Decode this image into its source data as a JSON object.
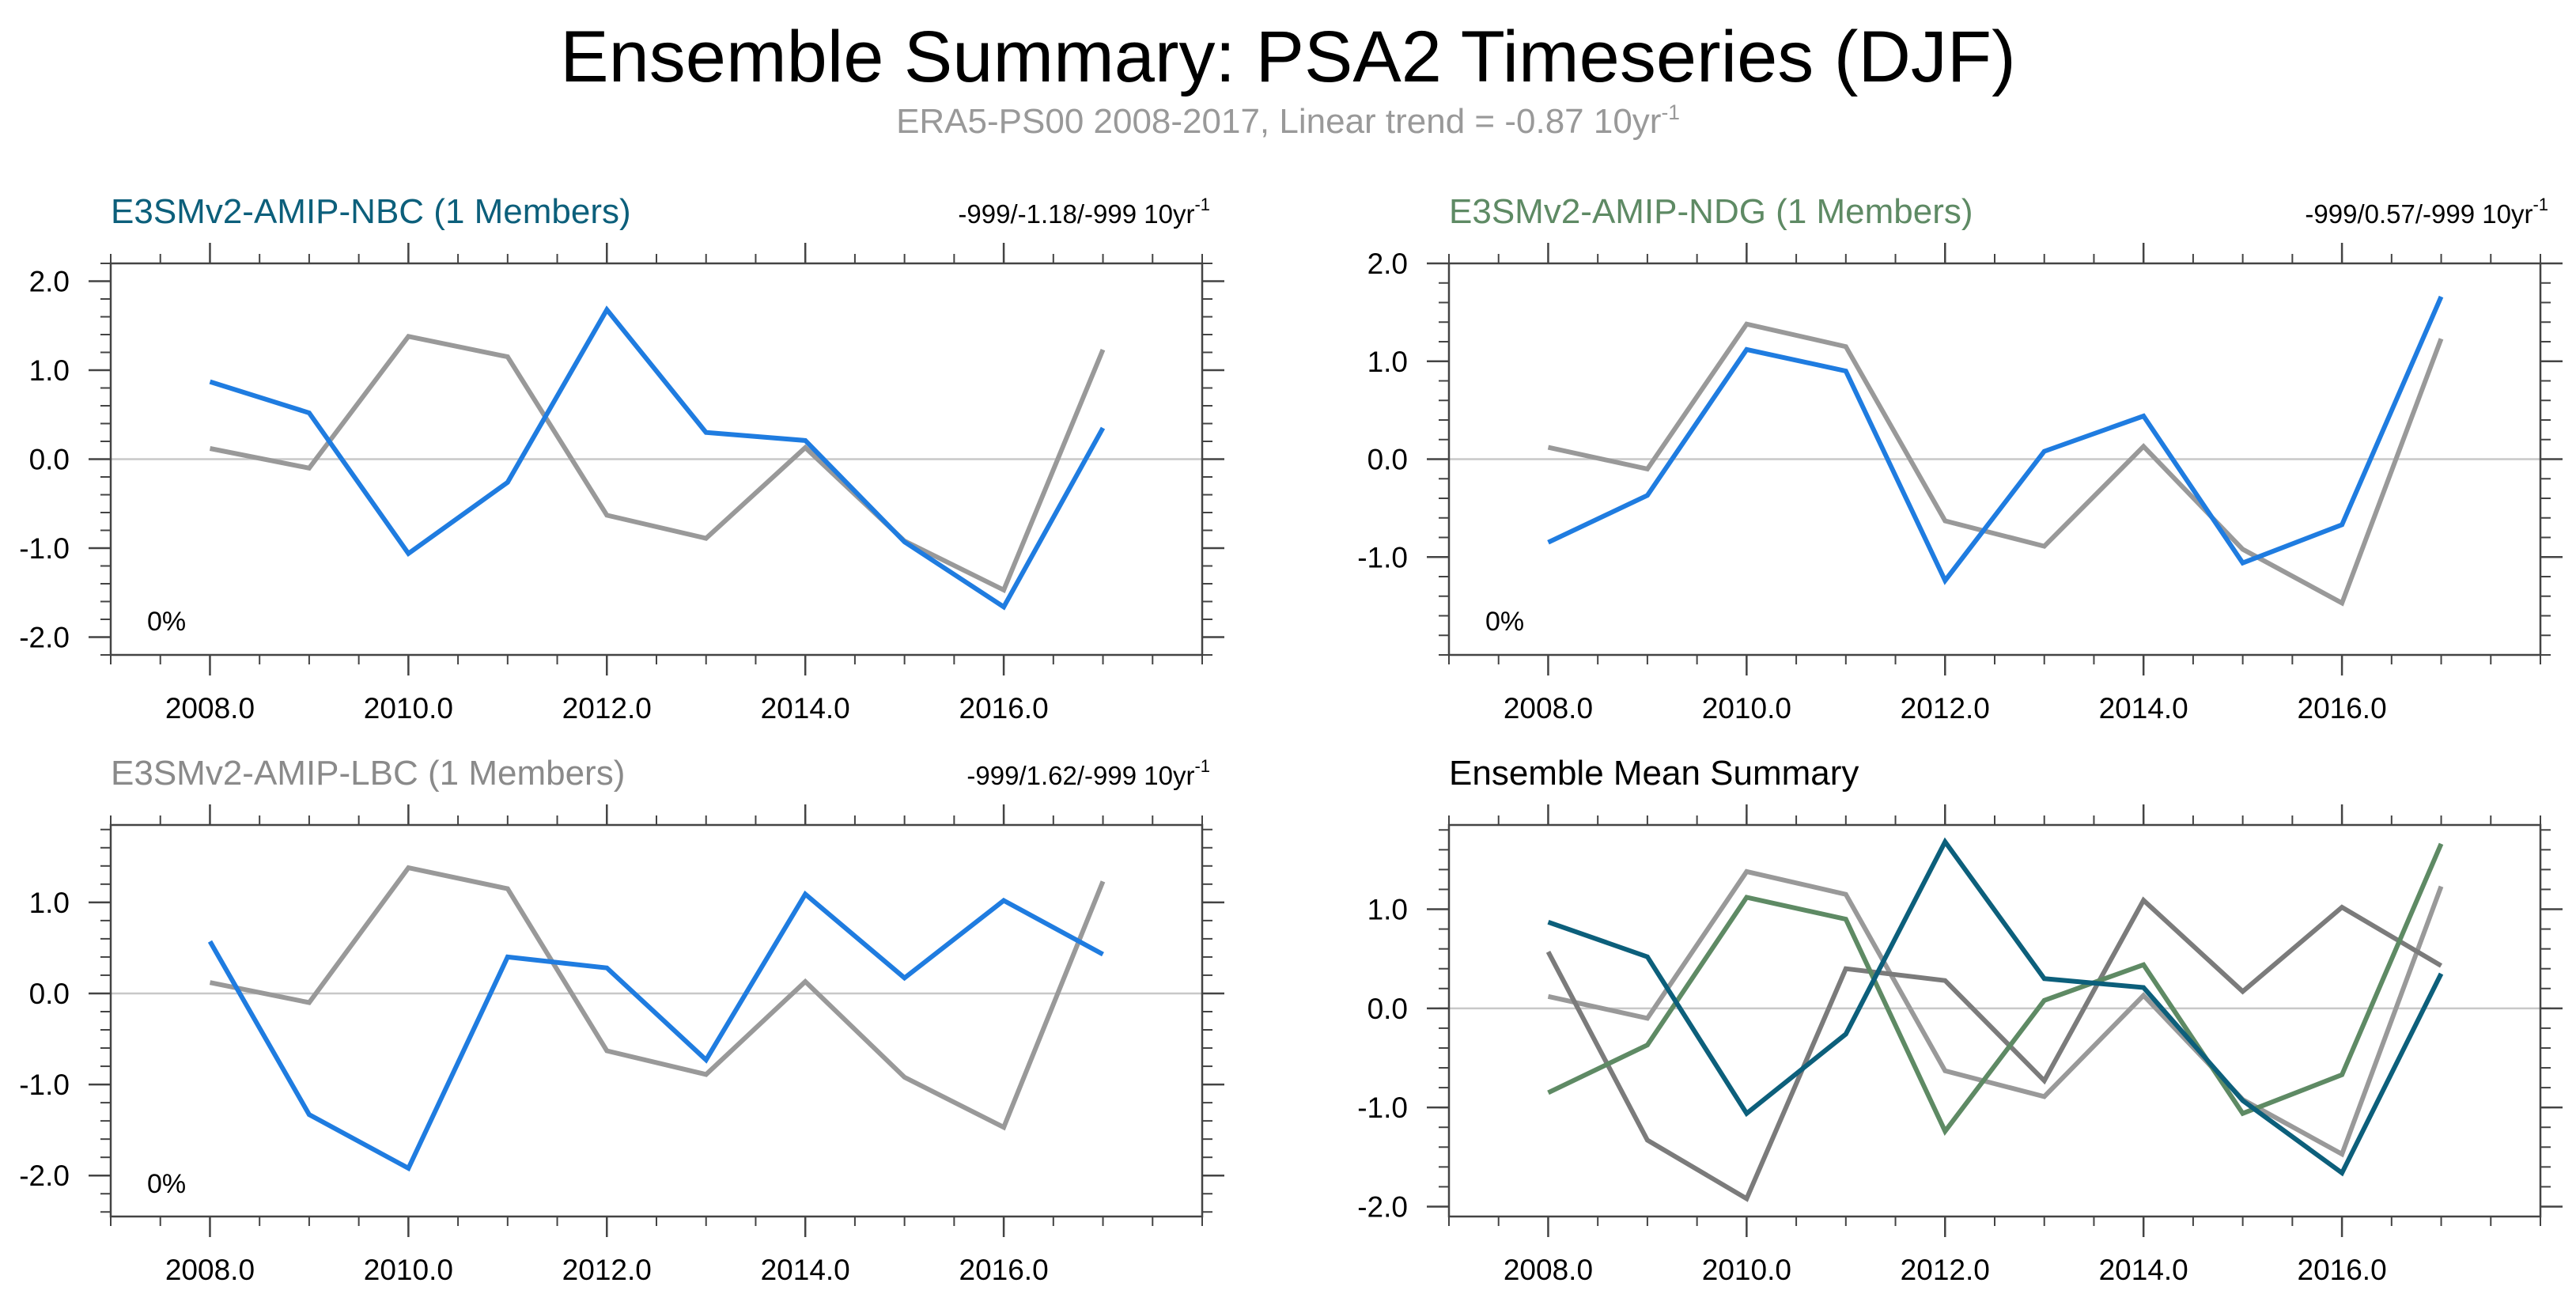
{
  "figure": {
    "title": "Ensemble Summary: PSA2 Timeseries (DJF)",
    "subtitle_main": "ERA5-PS00 2008-2017, Linear trend = -0.87 10yr",
    "subtitle_sup": "-1"
  },
  "colors": {
    "obs": "#999999",
    "nbc": "#1f7ce0",
    "ndg": "#1f7ce0",
    "lbc": "#1f7ce0",
    "mean_nbc": "#0c5f7b",
    "mean_ndg": "#5e8a64",
    "mean_lbc": "#7b7b7b",
    "title_nbc": "#0c5f7b",
    "title_ndg": "#5e8a64",
    "title_lbc": "#8a8a8a"
  },
  "chart_data": [
    {
      "id": "nbc",
      "type": "line",
      "title": "E3SMv2-AMIP-NBC (1 Members)",
      "trend_main": "-999/-1.18/-999 10yr",
      "trend_sup": "-1",
      "pct": "0%",
      "xlim": [
        2007.0,
        2018.0
      ],
      "ylim": [
        -2.2,
        2.2
      ],
      "xticks": [
        2008,
        2010,
        2012,
        2014,
        2016
      ],
      "xtick_labels": [
        "2008.0",
        "2010.0",
        "2012.0",
        "2014.0",
        "2016.0"
      ],
      "yticks": [
        2,
        1,
        0,
        -1,
        -2
      ],
      "ytick_labels": [
        "2.0",
        "1.0",
        "0.0",
        "-1.0",
        "-2.0"
      ],
      "x": [
        2008,
        2009,
        2010,
        2011,
        2012,
        2013,
        2014,
        2015,
        2016,
        2017
      ],
      "series": [
        {
          "name": "ERA5-PS00",
          "color_key": "obs",
          "values": [
            0.12,
            -0.1,
            1.38,
            1.15,
            -0.63,
            -0.89,
            0.13,
            -0.92,
            -1.47,
            1.23
          ]
        },
        {
          "name": "E3SMv2-AMIP-NBC",
          "color_key": "nbc",
          "values": [
            0.87,
            0.52,
            -1.06,
            -0.26,
            1.68,
            0.3,
            0.21,
            -0.93,
            -1.66,
            0.35
          ]
        }
      ]
    },
    {
      "id": "ndg",
      "type": "line",
      "title": "E3SMv2-AMIP-NDG (1 Members)",
      "trend_main": "-999/0.57/-999 10yr",
      "trend_sup": "-1",
      "pct": "0%",
      "xlim": [
        2007.0,
        2018.0
      ],
      "ylim": [
        -2.0,
        2.0
      ],
      "xticks": [
        2008,
        2010,
        2012,
        2014,
        2016
      ],
      "xtick_labels": [
        "2008.0",
        "2010.0",
        "2012.0",
        "2014.0",
        "2016.0"
      ],
      "yticks": [
        2,
        1,
        0,
        -1
      ],
      "ytick_labels": [
        "2.0",
        "1.0",
        "0.0",
        "-1.0"
      ],
      "x": [
        2008,
        2009,
        2010,
        2011,
        2012,
        2013,
        2014,
        2015,
        2016,
        2017
      ],
      "series": [
        {
          "name": "ERA5-PS00",
          "color_key": "obs",
          "values": [
            0.12,
            -0.1,
            1.38,
            1.15,
            -0.63,
            -0.89,
            0.13,
            -0.92,
            -1.47,
            1.23
          ]
        },
        {
          "name": "E3SMv2-AMIP-NDG",
          "color_key": "ndg",
          "values": [
            -0.85,
            -0.37,
            1.12,
            0.9,
            -1.24,
            0.08,
            0.44,
            -1.06,
            -0.67,
            1.66
          ]
        }
      ]
    },
    {
      "id": "lbc",
      "type": "line",
      "title": "E3SMv2-AMIP-LBC (1 Members)",
      "trend_main": "-999/1.62/-999 10yr",
      "trend_sup": "-1",
      "pct": "0%",
      "xlim": [
        2007.0,
        2018.0
      ],
      "ylim": [
        -2.45,
        1.85
      ],
      "xticks": [
        2008,
        2010,
        2012,
        2014,
        2016
      ],
      "xtick_labels": [
        "2008.0",
        "2010.0",
        "2012.0",
        "2014.0",
        "2016.0"
      ],
      "yticks": [
        1,
        0,
        -1,
        -2
      ],
      "ytick_labels": [
        "1.0",
        "0.0",
        "-1.0",
        "-2.0"
      ],
      "x": [
        2008,
        2009,
        2010,
        2011,
        2012,
        2013,
        2014,
        2015,
        2016,
        2017
      ],
      "series": [
        {
          "name": "ERA5-PS00",
          "color_key": "obs",
          "values": [
            0.12,
            -0.1,
            1.38,
            1.15,
            -0.63,
            -0.89,
            0.13,
            -0.92,
            -1.47,
            1.23
          ]
        },
        {
          "name": "E3SMv2-AMIP-LBC",
          "color_key": "lbc",
          "values": [
            0.57,
            -1.33,
            -1.92,
            0.4,
            0.28,
            -0.73,
            1.09,
            0.17,
            1.02,
            0.43
          ]
        }
      ]
    },
    {
      "id": "mean",
      "type": "line",
      "title": "Ensemble Mean Summary",
      "xlim": [
        2007.0,
        2018.0
      ],
      "ylim": [
        -2.1,
        1.85
      ],
      "xticks": [
        2008,
        2010,
        2012,
        2014,
        2016
      ],
      "xtick_labels": [
        "2008.0",
        "2010.0",
        "2012.0",
        "2014.0",
        "2016.0"
      ],
      "yticks": [
        1,
        0,
        -1,
        -2
      ],
      "ytick_labels": [
        "1.0",
        "0.0",
        "-1.0",
        "-2.0"
      ],
      "x": [
        2008,
        2009,
        2010,
        2011,
        2012,
        2013,
        2014,
        2015,
        2016,
        2017
      ],
      "series": [
        {
          "name": "ERA5-PS00",
          "color_key": "obs",
          "values": [
            0.12,
            -0.1,
            1.38,
            1.15,
            -0.63,
            -0.89,
            0.13,
            -0.92,
            -1.47,
            1.23
          ]
        },
        {
          "name": "E3SMv2-AMIP-LBC",
          "color_key": "mean_lbc",
          "values": [
            0.57,
            -1.33,
            -1.92,
            0.4,
            0.28,
            -0.73,
            1.09,
            0.17,
            1.02,
            0.43
          ]
        },
        {
          "name": "E3SMv2-AMIP-NDG",
          "color_key": "mean_ndg",
          "values": [
            -0.85,
            -0.37,
            1.12,
            0.9,
            -1.24,
            0.08,
            0.44,
            -1.06,
            -0.67,
            1.66
          ]
        },
        {
          "name": "E3SMv2-AMIP-NBC",
          "color_key": "mean_nbc",
          "values": [
            0.87,
            0.52,
            -1.06,
            -0.26,
            1.68,
            0.3,
            0.21,
            -0.93,
            -1.66,
            0.35
          ]
        }
      ]
    }
  ]
}
